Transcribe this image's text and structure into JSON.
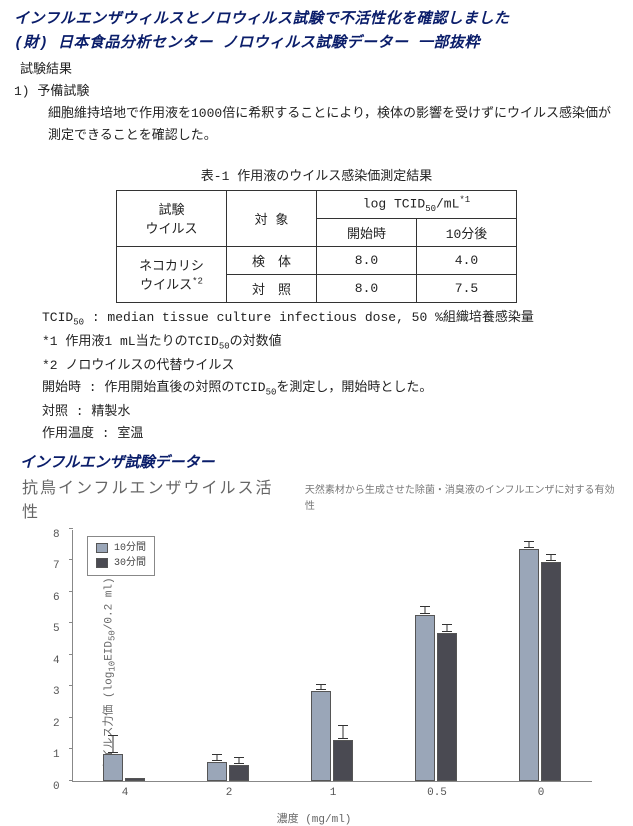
{
  "header": {
    "line1": "インフルエンザウィルスとノロウィルス試験で不活性化を確認しました",
    "line2": "(財) 日本食品分析センター  ノロウィルス試験データー  一部抜粋"
  },
  "results_label": "試験結果",
  "prelim_label": "1)  予備試験",
  "prelim_body": "細胞維持培地で作用液を1000倍に希釈することにより，検体の影響を受けずにウイルス感染価が測定できることを確認した。",
  "table": {
    "caption": "表-1  作用液のウイルス感染価測定結果",
    "h_virus": "試験\nウイルス",
    "h_target": "対 象",
    "h_log_html": "log TCID<span class='sub'>50</span>/mL<span class='sup'>*1</span>",
    "h_start": "開始時",
    "h_after10": "10分後",
    "row_virus_html": "ネコカリシ<br>ウイルス<span class='sup'>*2</span>",
    "row1_target": "検　体",
    "row1_start": "8.0",
    "row1_after": "4.0",
    "row2_target": "対　照",
    "row2_start": "8.0",
    "row2_after": "7.5"
  },
  "notes": {
    "n1_html": "TCID<span class='sub'>50</span> : median tissue culture infectious dose, 50 %組織培養感染量",
    "n2_html": "*1  作用液1 mL当たりのTCID<span class='sub'>50</span>の対数値",
    "n3": "*2  ノロウイルスの代替ウイルス",
    "n4_html": "開始時 : 作用開始直後の対照のTCID<span class='sub'>50</span>を測定し，開始時とした。",
    "n5": "対照 : 精製水",
    "n6": "作用温度 : 室温"
  },
  "section2": "インフルエンザ試験データー",
  "chart": {
    "title": "抗鳥インフルエンザウイルス活性",
    "subtitle": "天然素材から生成させた除菌・消臭液のインフルエンザに対する有効性",
    "yaxis_html": "ウイルス力価 (log<span class='sub'>10</span>EID<span class='sub'>50</span>/0.2 ml)",
    "xaxis": "濃度 (mg/ml)",
    "ymin": 0,
    "ymax": 8,
    "ystep": 1,
    "legend": {
      "a": "10分間",
      "b": "30分間"
    },
    "colors": {
      "a": "#9aa6b8",
      "b": "#4a4a52",
      "border": "#555555"
    },
    "categories": [
      "4",
      "2",
      "1",
      "0.5",
      "0"
    ],
    "series_a": [
      0.85,
      0.6,
      2.85,
      5.25,
      7.35
    ],
    "series_b": [
      0.1,
      0.5,
      1.3,
      4.7,
      6.95
    ],
    "err_a": [
      0.55,
      0.2,
      0.15,
      0.25,
      0.2
    ],
    "err_b": [
      0.0,
      0.2,
      0.4,
      0.2,
      0.2
    ]
  }
}
